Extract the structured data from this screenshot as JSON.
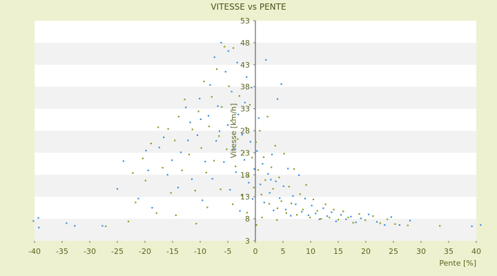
{
  "chart_data": {
    "type": "scatter",
    "title": "VITESSE vs PENTE",
    "xlabel": "Pente [%]",
    "ylabel": "Vitesse [km/h]",
    "xlim": [
      -40,
      40
    ],
    "ylim": [
      3,
      53
    ],
    "x_ticks": [
      -40,
      -35,
      -30,
      -25,
      -20,
      -15,
      -10,
      -5,
      0,
      5,
      10,
      15,
      20,
      25,
      30,
      35,
      40
    ],
    "y_ticks": [
      3,
      8,
      13,
      18,
      23,
      28,
      33,
      38,
      43,
      48,
      53
    ],
    "banded_background": true,
    "legend": "none",
    "colors": {
      "series_1": "#3b8fd9",
      "series_2": "#8c9a1e",
      "band": "#f2f2f2",
      "plot_bg": "#ffffff",
      "axis": "#444444"
    },
    "series": [
      {
        "color": "#3b8fd9",
        "points": [
          [
            -40.2,
            7.5
          ],
          [
            -39.3,
            8.2
          ],
          [
            -39.2,
            6.0
          ],
          [
            -34.2,
            7.0
          ],
          [
            -32.7,
            6.4
          ],
          [
            -27.7,
            6.4
          ],
          [
            -25.0,
            14.8
          ],
          [
            -23.9,
            21.1
          ],
          [
            -21.2,
            12.6
          ],
          [
            -19.4,
            19.0
          ],
          [
            -18.7,
            10.5
          ],
          [
            -17.4,
            24.2
          ],
          [
            -16.6,
            26.5
          ],
          [
            -15.1,
            21.3
          ],
          [
            -14.0,
            15.1
          ],
          [
            -13.5,
            23.1
          ],
          [
            -12.6,
            33.3
          ],
          [
            -11.8,
            29.9
          ],
          [
            -11.5,
            17.0
          ],
          [
            -10.5,
            27.0
          ],
          [
            -10.1,
            35.3
          ],
          [
            -9.6,
            12.2
          ],
          [
            -9.1,
            21.0
          ],
          [
            -8.5,
            31.4
          ],
          [
            -8.2,
            38.4
          ],
          [
            -7.8,
            17.1
          ],
          [
            -7.4,
            44.7
          ],
          [
            -7.1,
            25.7
          ],
          [
            -6.8,
            33.6
          ],
          [
            -6.2,
            48.0
          ],
          [
            -5.7,
            20.9
          ],
          [
            -5.4,
            41.4
          ],
          [
            -5.0,
            29.3
          ],
          [
            -4.6,
            14.6
          ],
          [
            -4.3,
            36.9
          ],
          [
            -3.9,
            23.9
          ],
          [
            -3.5,
            18.6
          ],
          [
            -3.1,
            31.7
          ],
          [
            -2.8,
            9.8
          ],
          [
            -2.4,
            27.1
          ],
          [
            -2.0,
            21.4
          ],
          [
            -1.6,
            40.2
          ],
          [
            -1.2,
            16.2
          ],
          [
            -0.9,
            25.5
          ],
          [
            -0.5,
            12.5
          ],
          [
            -0.2,
            19.3
          ],
          [
            0.3,
            23.4
          ],
          [
            0.6,
            30.9
          ],
          [
            0.9,
            15.8
          ],
          [
            1.3,
            20.5
          ],
          [
            1.6,
            11.7
          ],
          [
            1.9,
            44.1
          ],
          [
            2.3,
            18.2
          ],
          [
            2.6,
            13.9
          ],
          [
            3.0,
            22.6
          ],
          [
            3.3,
            9.9
          ],
          [
            3.7,
            16.5
          ],
          [
            4.0,
            35.2
          ],
          [
            4.4,
            12.7
          ],
          [
            4.7,
            38.6
          ],
          [
            5.1,
            15.4
          ],
          [
            5.5,
            10.1
          ],
          [
            5.9,
            19.4
          ],
          [
            6.4,
            8.7
          ],
          [
            6.8,
            13.2
          ],
          [
            7.3,
            11.3
          ],
          [
            7.9,
            17.9
          ],
          [
            8.4,
            9.6
          ],
          [
            9.0,
            12.6
          ],
          [
            9.6,
            8.8
          ],
          [
            10.2,
            11.0
          ],
          [
            10.9,
            9.2
          ],
          [
            11.6,
            7.9
          ],
          [
            12.3,
            10.4
          ],
          [
            13.0,
            8.6
          ],
          [
            13.8,
            9.5
          ],
          [
            14.6,
            7.4
          ],
          [
            15.5,
            8.9
          ],
          [
            16.4,
            7.9
          ],
          [
            17.3,
            8.5
          ],
          [
            18.2,
            7.2
          ],
          [
            19.1,
            8.1
          ],
          [
            20.5,
            9.0
          ],
          [
            22.0,
            7.3
          ],
          [
            23.4,
            6.6
          ],
          [
            24.6,
            8.4
          ],
          [
            26.1,
            6.6
          ],
          [
            28.0,
            7.6
          ],
          [
            39.2,
            6.3
          ],
          [
            40.8,
            6.6
          ],
          [
            -19.8,
            23.5
          ],
          [
            -15.9,
            18.0
          ],
          [
            -12.2,
            25.8
          ],
          [
            -9.9,
            30.6
          ],
          [
            -6.5,
            27.9
          ],
          [
            -4.9,
            46.1
          ],
          [
            -3.3,
            43.5
          ],
          [
            -1.9,
            34.4
          ],
          [
            -0.7,
            37.8
          ],
          [
            2.8,
            16.9
          ]
        ]
      },
      {
        "color": "#8c9a1e",
        "points": [
          [
            -23.0,
            7.4
          ],
          [
            -22.2,
            18.4
          ],
          [
            -20.4,
            21.7
          ],
          [
            -19.9,
            16.7
          ],
          [
            -18.9,
            25.1
          ],
          [
            -17.6,
            28.8
          ],
          [
            -16.8,
            19.6
          ],
          [
            -15.8,
            28.4
          ],
          [
            -15.3,
            13.9
          ],
          [
            -14.6,
            25.8
          ],
          [
            -13.9,
            31.2
          ],
          [
            -13.3,
            19.0
          ],
          [
            -12.8,
            35.1
          ],
          [
            -12.0,
            22.6
          ],
          [
            -11.4,
            28.3
          ],
          [
            -10.9,
            14.4
          ],
          [
            -10.3,
            32.4
          ],
          [
            -9.8,
            24.1
          ],
          [
            -9.3,
            39.2
          ],
          [
            -8.9,
            18.5
          ],
          [
            -8.4,
            29.0
          ],
          [
            -7.9,
            35.7
          ],
          [
            -7.5,
            21.2
          ],
          [
            -7.0,
            42.0
          ],
          [
            -6.6,
            26.8
          ],
          [
            -6.1,
            33.4
          ],
          [
            -5.6,
            47.1
          ],
          [
            -5.2,
            23.8
          ],
          [
            -4.8,
            38.1
          ],
          [
            -4.4,
            30.3
          ],
          [
            -4.0,
            46.8
          ],
          [
            -3.6,
            19.9
          ],
          [
            -3.2,
            26.1
          ],
          [
            -2.9,
            35.9
          ],
          [
            -2.5,
            13.3
          ],
          [
            -2.1,
            23.0
          ],
          [
            -1.7,
            28.7
          ],
          [
            -1.3,
            17.7
          ],
          [
            -1.0,
            33.9
          ],
          [
            -0.6,
            21.9
          ],
          [
            -0.3,
            15.1
          ],
          [
            0.1,
            25.4
          ],
          [
            0.5,
            19.1
          ],
          [
            0.8,
            28.0
          ],
          [
            1.1,
            13.5
          ],
          [
            1.5,
            22.0
          ],
          [
            1.8,
            16.8
          ],
          [
            2.2,
            31.2
          ],
          [
            2.5,
            11.4
          ],
          [
            2.9,
            19.7
          ],
          [
            3.2,
            14.8
          ],
          [
            3.6,
            24.6
          ],
          [
            4.0,
            10.4
          ],
          [
            4.3,
            17.4
          ],
          [
            4.7,
            12.0
          ],
          [
            5.2,
            22.8
          ],
          [
            5.6,
            9.3
          ],
          [
            6.1,
            15.3
          ],
          [
            6.5,
            11.5
          ],
          [
            7.0,
            19.3
          ],
          [
            7.5,
            8.9
          ],
          [
            8.1,
            13.6
          ],
          [
            8.6,
            10.1
          ],
          [
            9.2,
            15.7
          ],
          [
            9.9,
            8.3
          ],
          [
            10.5,
            12.4
          ],
          [
            11.2,
            9.8
          ],
          [
            11.9,
            8.0
          ],
          [
            12.7,
            11.3
          ],
          [
            13.4,
            8.3
          ],
          [
            14.2,
            10.1
          ],
          [
            15.0,
            7.8
          ],
          [
            15.9,
            9.7
          ],
          [
            16.8,
            8.3
          ],
          [
            17.7,
            7.1
          ],
          [
            18.8,
            9.1
          ],
          [
            19.9,
            7.7
          ],
          [
            21.3,
            8.6
          ],
          [
            22.6,
            7.0
          ],
          [
            23.9,
            7.9
          ],
          [
            25.3,
            6.8
          ],
          [
            27.6,
            6.5
          ],
          [
            33.4,
            6.4
          ],
          [
            -27.1,
            6.3
          ],
          [
            -21.7,
            11.7
          ],
          [
            -17.9,
            9.3
          ],
          [
            -14.4,
            8.8
          ],
          [
            -10.7,
            6.9
          ],
          [
            -8.7,
            10.6
          ],
          [
            -6.3,
            14.7
          ],
          [
            -4.1,
            11.3
          ],
          [
            -1.5,
            9.4
          ],
          [
            0.2,
            6.6
          ],
          [
            1.2,
            8.3
          ],
          [
            3.9,
            7.7
          ]
        ]
      }
    ]
  }
}
